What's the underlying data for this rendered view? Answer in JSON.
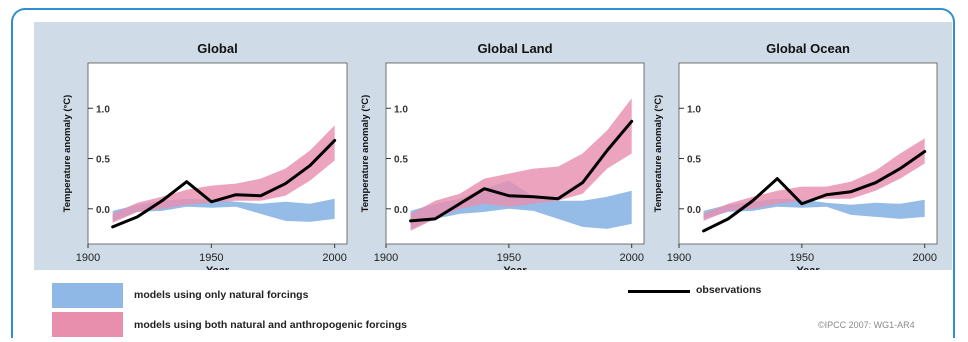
{
  "colors": {
    "natural_band": "#8fb8e6",
    "anthro_band": "#e88fae",
    "observations": "#000000",
    "panel_background": "#cfdce7",
    "border": "#2f8fd0"
  },
  "legend": {
    "natural_label": "models using only natural forcings",
    "anthro_label": "models using both natural and anthropogenic forcings",
    "observations_label": "observations"
  },
  "credit": "©IPCC 2007: WG1-AR4",
  "chart_data": [
    {
      "type": "line",
      "title": "Global",
      "xlabel": "Year",
      "ylabel": "Temperature anomaly (°C)",
      "xlim": [
        1900,
        2005
      ],
      "ylim": [
        -0.35,
        1.45
      ],
      "xticks": [
        1900,
        1950,
        2000
      ],
      "xtick_labels": [
        "1900",
        "1950",
        "2000"
      ],
      "yticks": [
        0.0,
        0.5,
        1.0
      ],
      "ytick_labels": [
        "0.0",
        "0.5",
        "1.0"
      ],
      "years": [
        1910,
        1920,
        1930,
        1940,
        1950,
        1960,
        1970,
        1980,
        1990,
        2000
      ],
      "series": [
        {
          "role": "natural_band",
          "lower": [
            -0.12,
            -0.03,
            -0.02,
            0.02,
            0.01,
            0.02,
            -0.05,
            -0.12,
            -0.13,
            -0.1
          ],
          "upper": [
            -0.02,
            0.04,
            0.08,
            0.1,
            0.09,
            0.07,
            0.05,
            0.07,
            0.05,
            0.1
          ]
        },
        {
          "role": "anthro_band",
          "lower": [
            -0.14,
            -0.03,
            0.0,
            0.04,
            0.06,
            0.08,
            0.08,
            0.13,
            0.28,
            0.48
          ],
          "upper": [
            -0.05,
            0.06,
            0.12,
            0.19,
            0.23,
            0.25,
            0.3,
            0.4,
            0.58,
            0.83
          ]
        },
        {
          "role": "observations",
          "values": [
            -0.18,
            -0.08,
            0.08,
            0.27,
            0.07,
            0.14,
            0.13,
            0.25,
            0.43,
            0.68
          ]
        }
      ]
    },
    {
      "type": "line",
      "title": "Global Land",
      "xlabel": "Year",
      "ylabel": "Temperature anomaly (°C)",
      "xlim": [
        1900,
        2005
      ],
      "ylim": [
        -0.35,
        1.45
      ],
      "xticks": [
        1900,
        1950,
        2000
      ],
      "xtick_labels": [
        "1900",
        "1950",
        "2000"
      ],
      "yticks": [
        0.0,
        0.5,
        1.0
      ],
      "ytick_labels": [
        "0.0",
        "0.5",
        "1.0"
      ],
      "years": [
        1910,
        1920,
        1930,
        1940,
        1950,
        1960,
        1970,
        1980,
        1990,
        2000
      ],
      "series": [
        {
          "role": "natural_band",
          "lower": [
            -0.2,
            -0.1,
            -0.05,
            -0.03,
            0.0,
            -0.02,
            -0.1,
            -0.18,
            -0.2,
            -0.15
          ],
          "upper": [
            -0.02,
            0.05,
            0.1,
            0.2,
            0.28,
            0.12,
            0.08,
            0.08,
            0.12,
            0.18
          ]
        },
        {
          "role": "anthro_band",
          "lower": [
            -0.22,
            -0.1,
            0.0,
            0.05,
            0.02,
            0.05,
            0.08,
            0.15,
            0.4,
            0.55
          ],
          "upper": [
            -0.05,
            0.08,
            0.15,
            0.3,
            0.35,
            0.4,
            0.42,
            0.55,
            0.78,
            1.1
          ]
        },
        {
          "role": "observations",
          "values": [
            -0.12,
            -0.1,
            0.05,
            0.2,
            0.13,
            0.12,
            0.1,
            0.26,
            0.58,
            0.87
          ]
        }
      ]
    },
    {
      "type": "line",
      "title": "Global Ocean",
      "xlabel": "Year",
      "ylabel": "Temperature anomaly (°C)",
      "xlim": [
        1900,
        2005
      ],
      "ylim": [
        -0.35,
        1.45
      ],
      "xticks": [
        1900,
        1950,
        2000
      ],
      "xtick_labels": [
        "1900",
        "1950",
        "2000"
      ],
      "yticks": [
        0.0,
        0.5,
        1.0
      ],
      "ytick_labels": [
        "0.0",
        "0.5",
        "1.0"
      ],
      "years": [
        1910,
        1920,
        1930,
        1940,
        1950,
        1960,
        1970,
        1980,
        1990,
        2000
      ],
      "series": [
        {
          "role": "natural_band",
          "lower": [
            -0.1,
            -0.03,
            -0.02,
            0.02,
            0.01,
            0.02,
            -0.06,
            -0.08,
            -0.1,
            -0.08
          ],
          "upper": [
            -0.02,
            0.04,
            0.07,
            0.1,
            0.09,
            0.06,
            0.04,
            0.06,
            0.05,
            0.09
          ]
        },
        {
          "role": "anthro_band",
          "lower": [
            -0.12,
            -0.02,
            0.0,
            0.05,
            0.08,
            0.1,
            0.1,
            0.18,
            0.3,
            0.45
          ],
          "upper": [
            -0.05,
            0.05,
            0.12,
            0.18,
            0.22,
            0.22,
            0.27,
            0.38,
            0.55,
            0.7
          ]
        },
        {
          "role": "observations",
          "values": [
            -0.22,
            -0.1,
            0.08,
            0.3,
            0.05,
            0.14,
            0.17,
            0.26,
            0.4,
            0.57
          ]
        }
      ]
    }
  ]
}
